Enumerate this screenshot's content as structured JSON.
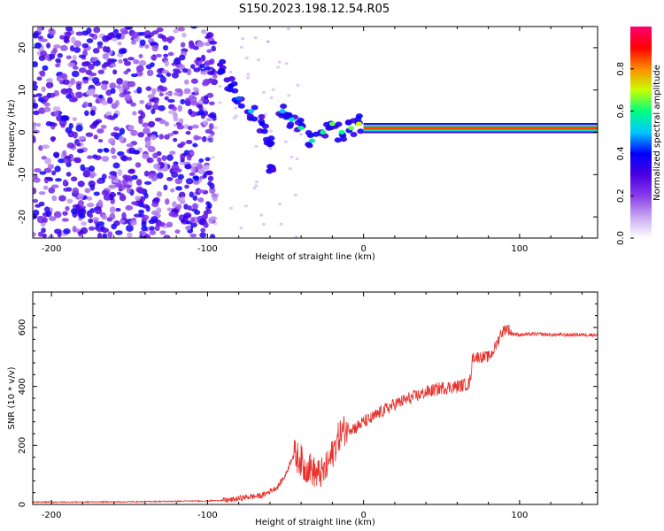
{
  "figure": {
    "title": "S150.2023.198.12.54.R05"
  },
  "colors": {
    "snr_line": "#e8302b",
    "axes": "#000000",
    "colormap": [
      "#ffffff",
      "#c8a8f0",
      "#8a3bea",
      "#4a00e0",
      "#0000ff",
      "#00c8ff",
      "#00ff80",
      "#c8ff00",
      "#ff8c00",
      "#ff0000",
      "#ff0070"
    ]
  },
  "chart_data": [
    {
      "type": "heatmap",
      "xlabel": "Height of straight line (km)",
      "ylabel": "Frequency (Hz)",
      "xlim": [
        -212,
        150
      ],
      "ylim": [
        -25,
        25
      ],
      "xticks": [
        -200,
        -100,
        0,
        100
      ],
      "yticks": [
        -20,
        -10,
        0,
        10,
        20
      ],
      "colorbar": {
        "label": "Normalized spectral amplitude",
        "range": [
          0,
          1
        ],
        "ticks": [
          "0.0",
          "0.2",
          "0.4",
          "0.6",
          "0.8"
        ]
      },
      "features": {
        "noise_region_x": [
          -212,
          -95
        ],
        "noise_level": 0.25,
        "transition_track": [
          {
            "x": -92,
            "y": 16,
            "a": 0.3
          },
          {
            "x": -85,
            "y": 11,
            "a": 0.4
          },
          {
            "x": -80,
            "y": 8,
            "a": 0.45
          },
          {
            "x": -72,
            "y": 5,
            "a": 0.5
          },
          {
            "x": -65,
            "y": 2,
            "a": 0.4
          },
          {
            "x": -60,
            "y": -3,
            "a": 0.35
          },
          {
            "x": -58,
            "y": -9,
            "a": 0.3
          },
          {
            "x": -52,
            "y": 5,
            "a": 0.5
          },
          {
            "x": -46,
            "y": 3,
            "a": 0.55
          },
          {
            "x": -40,
            "y": 1,
            "a": 0.6
          },
          {
            "x": -33,
            "y": -2,
            "a": 0.55
          },
          {
            "x": -26,
            "y": 0,
            "a": 0.6
          },
          {
            "x": -20,
            "y": 2,
            "a": 0.65
          },
          {
            "x": -14,
            "y": 0,
            "a": 0.6
          },
          {
            "x": -8,
            "y": 1,
            "a": 0.65
          },
          {
            "x": -3,
            "y": 2,
            "a": 0.7
          }
        ],
        "stable_band": {
          "x": [
            0,
            150
          ],
          "y": 1,
          "a": 0.85
        }
      }
    },
    {
      "type": "line",
      "xlabel": "Height of straight line (km)",
      "ylabel": "SNR (10 * v/v)",
      "xlim": [
        -212,
        150
      ],
      "ylim": [
        0,
        720
      ],
      "xticks": [
        -200,
        -100,
        0,
        100
      ],
      "yticks": [
        0,
        200,
        400,
        600
      ],
      "series": [
        {
          "x": [
            -212,
            -150,
            -100,
            -85,
            -75,
            -65,
            -55,
            -50,
            -45,
            -40,
            -38,
            -35,
            -30,
            -25,
            -20,
            -18,
            -15,
            -10,
            -5,
            0,
            5,
            10,
            20,
            30,
            40,
            50,
            60,
            68,
            70,
            80,
            82,
            85,
            88,
            90,
            92,
            95,
            100,
            110,
            120,
            130,
            140,
            150
          ],
          "y": [
            8,
            9,
            12,
            15,
            25,
            30,
            60,
            100,
            170,
            150,
            120,
            130,
            100,
            110,
            170,
            200,
            240,
            260,
            260,
            280,
            290,
            310,
            340,
            360,
            380,
            395,
            400,
            410,
            500,
            500,
            510,
            540,
            580,
            590,
            600,
            580,
            575,
            578,
            575,
            575,
            575,
            575
          ]
        }
      ]
    }
  ]
}
